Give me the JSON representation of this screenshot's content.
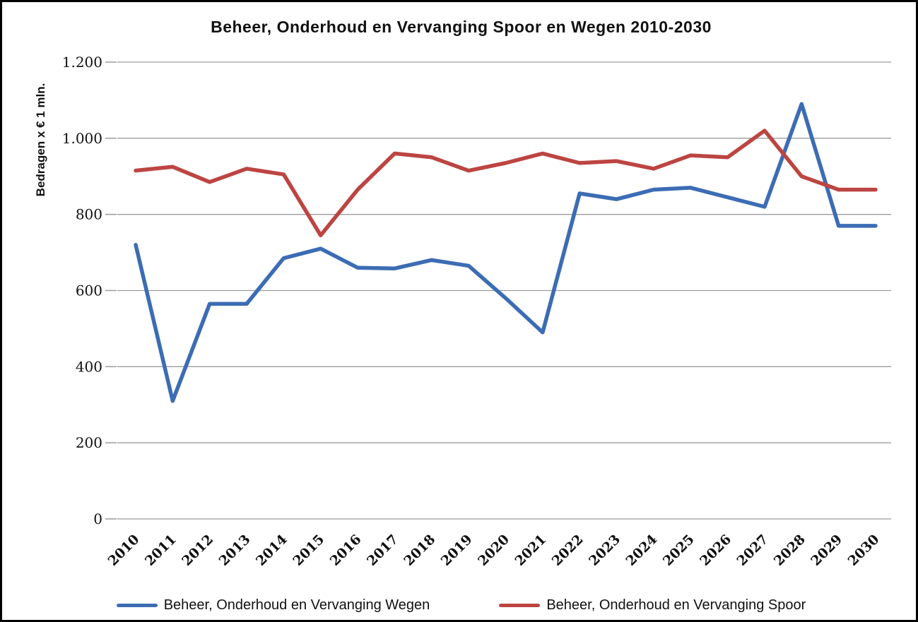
{
  "chart_data": {
    "type": "line",
    "title": "Beheer, Onderhoud en Vervanging Spoor en Wegen 2010-2030",
    "ylabel": "Bedragen x € 1 mln.",
    "xlabel": "",
    "categories": [
      "2010",
      "2011",
      "2012",
      "2013",
      "2014",
      "2015",
      "2016",
      "2017",
      "2018",
      "2019",
      "2020",
      "2021",
      "2022",
      "2023",
      "2024",
      "2025",
      "2026",
      "2027",
      "2028",
      "2029",
      "2030"
    ],
    "ylim": [
      0,
      1200
    ],
    "y_ticks": [
      0,
      200,
      400,
      600,
      800,
      1000,
      1200
    ],
    "y_tick_labels": [
      "0",
      "200",
      "400",
      "600",
      "800",
      "1.000",
      "1.200"
    ],
    "grid": true,
    "legend_position": "bottom",
    "series": [
      {
        "name": "Beheer, Onderhoud en Vervanging Wegen",
        "color": "#3C6CB4",
        "values": [
          720,
          310,
          565,
          565,
          685,
          710,
          660,
          658,
          680,
          665,
          580,
          490,
          855,
          840,
          865,
          870,
          845,
          820,
          1090,
          770,
          770
        ]
      },
      {
        "name": "Beheer, Onderhoud en Vervanging Spoor",
        "color": "#BC4542",
        "values": [
          915,
          925,
          885,
          920,
          905,
          745,
          865,
          960,
          950,
          915,
          935,
          960,
          935,
          940,
          920,
          955,
          950,
          1020,
          900,
          865,
          865
        ]
      }
    ]
  },
  "colors": {
    "grid": "#9b9b9b",
    "tick": "#9b9b9b",
    "text": "#111111",
    "background": "#ffffff",
    "border": "#000000"
  }
}
